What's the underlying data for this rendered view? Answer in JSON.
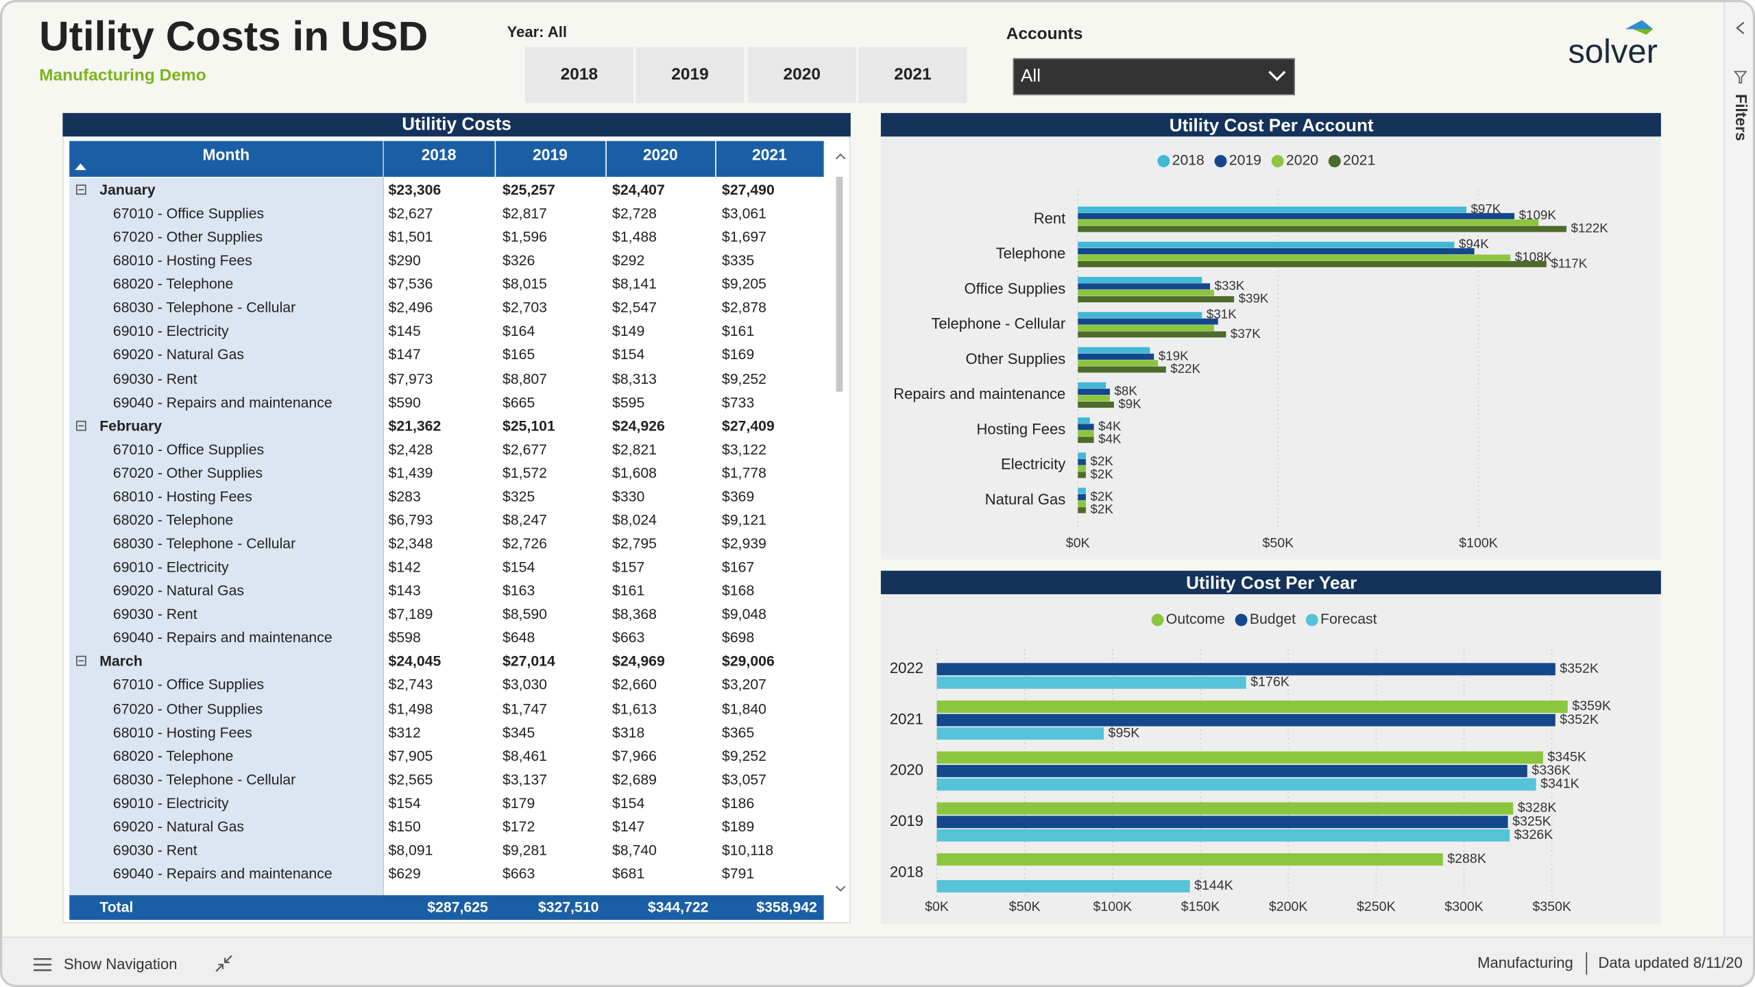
{
  "header": {
    "title": "Utility Costs in USD",
    "subtitle": "Manufacturing Demo"
  },
  "year_slicer": {
    "label": "Year: All",
    "options": [
      "2018",
      "2019",
      "2020",
      "2021"
    ]
  },
  "accounts_slicer": {
    "label": "Accounts",
    "selected": "All"
  },
  "logo": "solver",
  "table": {
    "title": "Utilitiy Costs",
    "columns": [
      "Month",
      "2018",
      "2019",
      "2020",
      "2021"
    ],
    "sections": [
      {
        "month": "January",
        "totals": [
          "$23,306",
          "$25,257",
          "$24,407",
          "$27,490"
        ],
        "rows": [
          [
            "67010 - Office Supplies",
            "$2,627",
            "$2,817",
            "$2,728",
            "$3,061"
          ],
          [
            "67020 - Other Supplies",
            "$1,501",
            "$1,596",
            "$1,488",
            "$1,697"
          ],
          [
            "68010 - Hosting Fees",
            "$290",
            "$326",
            "$292",
            "$335"
          ],
          [
            "68020 - Telephone",
            "$7,536",
            "$8,015",
            "$8,141",
            "$9,205"
          ],
          [
            "68030 - Telephone - Cellular",
            "$2,496",
            "$2,703",
            "$2,547",
            "$2,878"
          ],
          [
            "69010 - Electricity",
            "$145",
            "$164",
            "$149",
            "$161"
          ],
          [
            "69020 - Natural Gas",
            "$147",
            "$165",
            "$154",
            "$169"
          ],
          [
            "69030 - Rent",
            "$7,973",
            "$8,807",
            "$8,313",
            "$9,252"
          ],
          [
            "69040 - Repairs and maintenance",
            "$590",
            "$665",
            "$595",
            "$733"
          ]
        ]
      },
      {
        "month": "February",
        "totals": [
          "$21,362",
          "$25,101",
          "$24,926",
          "$27,409"
        ],
        "rows": [
          [
            "67010 - Office Supplies",
            "$2,428",
            "$2,677",
            "$2,821",
            "$3,122"
          ],
          [
            "67020 - Other Supplies",
            "$1,439",
            "$1,572",
            "$1,608",
            "$1,778"
          ],
          [
            "68010 - Hosting Fees",
            "$283",
            "$325",
            "$330",
            "$369"
          ],
          [
            "68020 - Telephone",
            "$6,793",
            "$8,247",
            "$8,024",
            "$9,121"
          ],
          [
            "68030 - Telephone - Cellular",
            "$2,348",
            "$2,726",
            "$2,795",
            "$2,939"
          ],
          [
            "69010 - Electricity",
            "$142",
            "$154",
            "$157",
            "$167"
          ],
          [
            "69020 - Natural Gas",
            "$143",
            "$163",
            "$161",
            "$168"
          ],
          [
            "69030 - Rent",
            "$7,189",
            "$8,590",
            "$8,368",
            "$9,048"
          ],
          [
            "69040 - Repairs and maintenance",
            "$598",
            "$648",
            "$663",
            "$698"
          ]
        ]
      },
      {
        "month": "March",
        "totals": [
          "$24,045",
          "$27,014",
          "$24,969",
          "$29,006"
        ],
        "rows": [
          [
            "67010 - Office Supplies",
            "$2,743",
            "$3,030",
            "$2,660",
            "$3,207"
          ],
          [
            "67020 - Other Supplies",
            "$1,498",
            "$1,747",
            "$1,613",
            "$1,840"
          ],
          [
            "68010 - Hosting Fees",
            "$312",
            "$345",
            "$318",
            "$365"
          ],
          [
            "68020 - Telephone",
            "$7,905",
            "$8,461",
            "$7,966",
            "$9,252"
          ],
          [
            "68030 - Telephone - Cellular",
            "$2,565",
            "$3,137",
            "$2,689",
            "$3,057"
          ],
          [
            "69010 - Electricity",
            "$154",
            "$179",
            "$154",
            "$186"
          ],
          [
            "69020 - Natural Gas",
            "$150",
            "$172",
            "$147",
            "$189"
          ],
          [
            "69030 - Rent",
            "$8,091",
            "$9,281",
            "$8,740",
            "$10,118"
          ],
          [
            "69040 - Repairs and maintenance",
            "$629",
            "$663",
            "$681",
            "$791"
          ]
        ]
      }
    ],
    "total": [
      "Total",
      "$287,625",
      "$327,510",
      "$344,722",
      "$358,942"
    ]
  },
  "chart_data": [
    {
      "type": "bar",
      "title": "Utility Cost Per Account",
      "categories": [
        "Rent",
        "Telephone",
        "Office Supplies",
        "Telephone - Cellular",
        "Other Supplies",
        "Repairs and maintenance",
        "Hosting Fees",
        "Electricity",
        "Natural Gas"
      ],
      "series": [
        {
          "name": "2018",
          "color": "#41b8d5",
          "values": [
            97,
            94,
            31,
            31,
            18,
            7,
            3,
            2,
            2
          ],
          "value_labels": [
            "$97K",
            "$94K",
            null,
            "$31K",
            null,
            null,
            null,
            null,
            null
          ]
        },
        {
          "name": "2019",
          "color": "#13488c",
          "values": [
            109,
            99,
            33,
            35,
            19,
            8,
            4,
            2,
            2
          ],
          "value_labels": [
            "$109K",
            null,
            "$33K",
            null,
            "$19K",
            "$8K",
            "$4K",
            "$2K",
            "$2K"
          ]
        },
        {
          "name": "2020",
          "color": "#8cc63e",
          "values": [
            115,
            108,
            34,
            34,
            20,
            8,
            4,
            2,
            2
          ],
          "value_labels": [
            null,
            "$108K",
            null,
            null,
            null,
            null,
            null,
            null,
            null
          ]
        },
        {
          "name": "2021",
          "color": "#4d6b2b",
          "values": [
            122,
            117,
            39,
            37,
            22,
            9,
            4,
            2,
            2
          ],
          "value_labels": [
            "$122K",
            "$117K",
            "$39K",
            "$37K",
            "$22K",
            "$9K",
            "$4K",
            "$2K",
            "$2K"
          ]
        }
      ],
      "xlim": [
        0,
        140
      ],
      "xticks": [
        {
          "value": 0,
          "label": "$0K"
        },
        {
          "value": 50,
          "label": "$50K"
        },
        {
          "value": 100,
          "label": "$100K"
        }
      ],
      "grid": true
    },
    {
      "type": "bar",
      "title": "Utility Cost Per Year",
      "categories": [
        "2022",
        "2021",
        "2020",
        "2019",
        "2018"
      ],
      "series": [
        {
          "name": "Outcome",
          "color": "#8cc63e",
          "values": [
            null,
            359,
            345,
            328,
            288
          ],
          "value_labels": [
            null,
            "$359K",
            "$345K",
            "$328K",
            "$288K"
          ]
        },
        {
          "name": "Budget",
          "color": "#13488c",
          "values": [
            352,
            352,
            336,
            325,
            null
          ],
          "value_labels": [
            "$352K",
            "$352K",
            "$336K",
            "$325K",
            null
          ]
        },
        {
          "name": "Forecast",
          "color": "#55c3d8",
          "values": [
            176,
            95,
            341,
            326,
            144
          ],
          "value_labels": [
            "$176K",
            "$95K",
            "$341K",
            "$326K",
            "$144K"
          ]
        }
      ],
      "xlim": [
        0,
        400
      ],
      "xticks": [
        {
          "value": 0,
          "label": "$0K"
        },
        {
          "value": 50,
          "label": "$50K"
        },
        {
          "value": 100,
          "label": "$100K"
        },
        {
          "value": 150,
          "label": "$150K"
        },
        {
          "value": 200,
          "label": "$200K"
        },
        {
          "value": 250,
          "label": "$250K"
        },
        {
          "value": 300,
          "label": "$300K"
        },
        {
          "value": 350,
          "label": "$350K"
        }
      ],
      "grid": true
    }
  ],
  "footer": {
    "navigation": "Show Navigation",
    "report": "Manufacturing",
    "updated": "Data updated 8/11/20"
  },
  "side_panel": {
    "filters": "Filters"
  }
}
